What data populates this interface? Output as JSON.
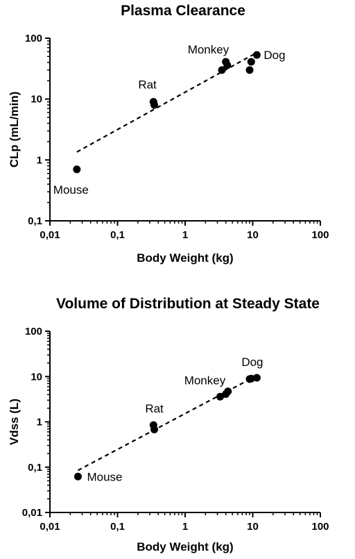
{
  "chart_data": [
    {
      "type": "scatter",
      "title": "Plasma Clearance",
      "xlabel": "Body  Weight (kg)",
      "ylabel": "CLp (mL/min)",
      "x_scale": "log",
      "y_scale": "log",
      "xlim": [
        0.01,
        100
      ],
      "ylim": [
        0.1,
        100
      ],
      "x_tick_labels": [
        "0,01",
        "0,1",
        "1",
        "10",
        "100"
      ],
      "y_tick_labels": [
        "0,1",
        "1",
        "10",
        "100"
      ],
      "grid": false,
      "series": [
        {
          "x": [
            0.025,
            0.34,
            0.35,
            3.5,
            4.0,
            4.2,
            9.0,
            9.5,
            11.5
          ],
          "y": [
            0.7,
            9.0,
            8.0,
            30,
            41,
            36,
            30,
            41,
            53
          ]
        }
      ],
      "fit_line": {
        "style": "dashed",
        "x": [
          0.025,
          11.5
        ],
        "y": [
          1.35,
          58
        ]
      },
      "annotations": [
        {
          "text": "Mouse",
          "x": 0.025,
          "y": 0.7
        },
        {
          "text": "Rat",
          "x": 0.34,
          "y": 9.0
        },
        {
          "text": "Monkey",
          "x": 4.0,
          "y": 41
        },
        {
          "text": "Dog",
          "x": 11.5,
          "y": 53
        }
      ]
    },
    {
      "type": "scatter",
      "title": "Volume of Distribution at  Steady  State",
      "xlabel": "Body  Weight (kg)",
      "ylabel": "Vdss (L)",
      "x_scale": "log",
      "y_scale": "log",
      "xlim": [
        0.01,
        100
      ],
      "ylim": [
        0.01,
        100
      ],
      "x_tick_labels": [
        "0,01",
        "0,1",
        "1",
        "10",
        "100"
      ],
      "y_tick_labels": [
        "0,01",
        "0,1",
        "1",
        "10",
        "100"
      ],
      "grid": false,
      "series": [
        {
          "x": [
            0.026,
            0.34,
            0.35,
            3.3,
            4.0,
            4.3,
            9.0,
            9.5,
            11.5
          ],
          "y": [
            0.062,
            0.85,
            0.68,
            3.6,
            4.1,
            4.7,
            8.8,
            9.0,
            9.4
          ]
        }
      ],
      "fit_line": {
        "style": "dashed",
        "x": [
          0.026,
          11.5
        ],
        "y": [
          0.085,
          10.5
        ]
      },
      "annotations": [
        {
          "text": "Mouse",
          "x": 0.026,
          "y": 0.062
        },
        {
          "text": "Rat",
          "x": 0.34,
          "y": 0.85
        },
        {
          "text": "Monkey",
          "x": 4.0,
          "y": 4.1
        },
        {
          "text": "Dog",
          "x": 9.5,
          "y": 9.0
        }
      ]
    }
  ]
}
